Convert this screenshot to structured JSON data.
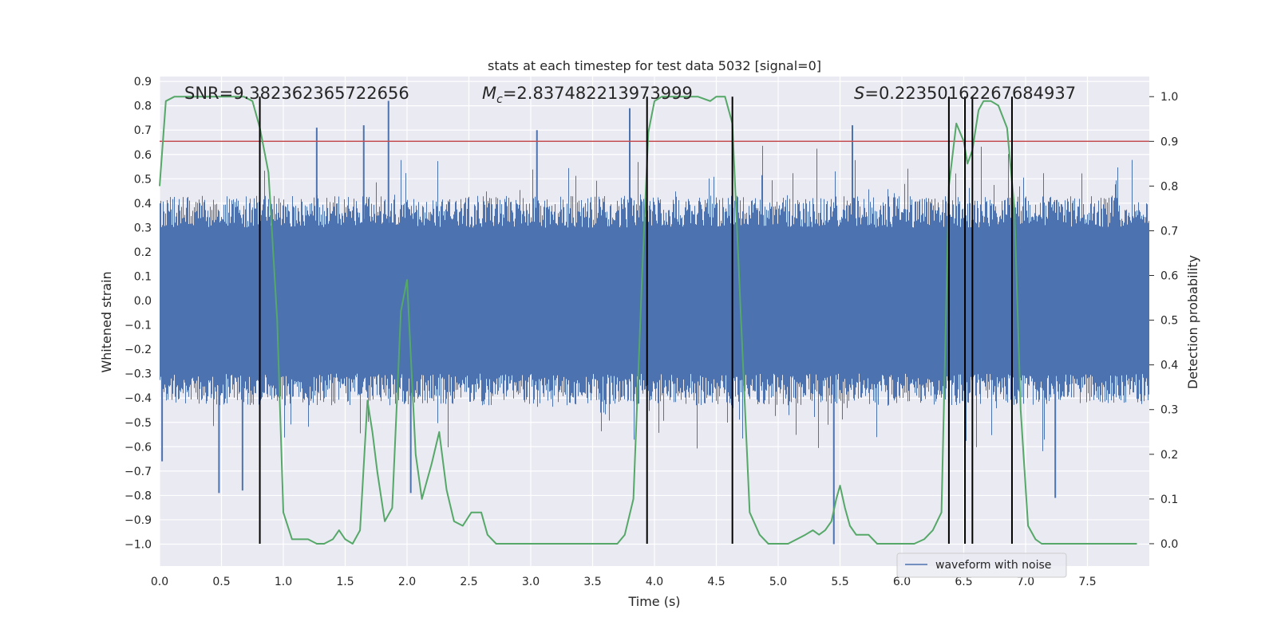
{
  "chart_data": {
    "type": "line",
    "title": "stats at each timestep for test data 5032 [signal=0]",
    "xlabel": "Time (s)",
    "ylabel_left": "Whitened strain",
    "ylabel_right": "Detection probability",
    "xlim": [
      0,
      8
    ],
    "ylim_left": [
      -1.09,
      0.92
    ],
    "ylim_right": [
      -0.05,
      1.045
    ],
    "x_ticks": [
      0.0,
      0.5,
      1.0,
      1.5,
      2.0,
      2.5,
      3.0,
      3.5,
      4.0,
      4.5,
      5.0,
      5.5,
      6.0,
      6.5,
      7.0,
      7.5
    ],
    "x_tick_labels": [
      "0.0",
      "0.5",
      "1.0",
      "1.5",
      "2.0",
      "2.5",
      "3.0",
      "3.5",
      "4.0",
      "4.5",
      "5.0",
      "5.5",
      "6.0",
      "6.5",
      "7.0",
      "7.5"
    ],
    "y_left_ticks": [
      0.9,
      0.8,
      0.7,
      0.6,
      0.5,
      0.4,
      0.3,
      0.2,
      0.1,
      0.0,
      -0.1,
      -0.2,
      -0.3,
      -0.4,
      -0.5,
      -0.6,
      -0.7,
      -0.8,
      -0.9,
      -1.0
    ],
    "y_left_tick_labels": [
      "0.9",
      "0.8",
      "0.7",
      "0.6",
      "0.5",
      "0.4",
      "0.3",
      "0.2",
      "0.1",
      "0.0",
      "−0.1",
      "−0.2",
      "−0.3",
      "−0.4",
      "−0.5",
      "−0.6",
      "−0.7",
      "−0.8",
      "−0.9",
      "−1.0"
    ],
    "y_right_ticks": [
      1.0,
      0.9,
      0.8,
      0.7,
      0.6,
      0.5,
      0.4,
      0.3,
      0.2,
      0.1,
      0.0
    ],
    "y_right_tick_labels": [
      "1.0",
      "0.9",
      "0.8",
      "0.7",
      "0.6",
      "0.5",
      "0.4",
      "0.3",
      "0.2",
      "0.1",
      "0.0"
    ],
    "annotations": {
      "snr": "SNR=9.382362365722656",
      "mc_symbol": "M",
      "mc_sub": "c",
      "mc_value": "=2.837482213973999",
      "s_symbol": "S",
      "s_value": "=0.22350162267684937"
    },
    "legend": {
      "label": "waveform with noise",
      "position": "lower-right"
    },
    "threshold": {
      "value": 0.9,
      "axis": "right",
      "color": "#c44e52"
    },
    "vertical_lines": [
      0.81,
      3.94,
      4.63,
      6.38,
      6.51,
      6.57,
      6.89
    ],
    "series": [
      {
        "name": "waveform with noise",
        "axis": "left",
        "color": "#4c72b0",
        "style": "dense noise, envelope approx ±0.45 with spikes",
        "notable_peaks": [
          {
            "x": 1.85,
            "y": 0.82
          },
          {
            "x": 3.8,
            "y": 0.79
          },
          {
            "x": 1.27,
            "y": 0.71
          },
          {
            "x": 1.65,
            "y": 0.72
          },
          {
            "x": 5.6,
            "y": 0.72
          },
          {
            "x": 3.05,
            "y": 0.7
          }
        ],
        "notable_troughs": [
          {
            "x": 5.45,
            "y": -1.0
          },
          {
            "x": 0.48,
            "y": -0.79
          },
          {
            "x": 0.67,
            "y": -0.78
          },
          {
            "x": 7.24,
            "y": -0.81
          },
          {
            "x": 2.03,
            "y": -0.79
          },
          {
            "x": 0.02,
            "y": -0.66
          }
        ]
      },
      {
        "name": "detection probability",
        "axis": "right",
        "color": "#55a868",
        "x": [
          0.0,
          0.05,
          0.12,
          0.2,
          0.3,
          0.4,
          0.5,
          0.6,
          0.68,
          0.75,
          0.81,
          0.88,
          0.95,
          1.0,
          1.07,
          1.15,
          1.2,
          1.27,
          1.33,
          1.4,
          1.45,
          1.5,
          1.56,
          1.62,
          1.68,
          1.72,
          1.76,
          1.82,
          1.88,
          1.95,
          2.0,
          2.07,
          2.12,
          2.2,
          2.26,
          2.32,
          2.38,
          2.45,
          2.52,
          2.6,
          2.65,
          2.72,
          2.8,
          2.9,
          3.0,
          3.1,
          3.2,
          3.3,
          3.4,
          3.5,
          3.6,
          3.7,
          3.76,
          3.83,
          3.9,
          3.95,
          4.0,
          4.06,
          4.15,
          4.25,
          4.35,
          4.45,
          4.5,
          4.57,
          4.63,
          4.7,
          4.77,
          4.85,
          4.92,
          5.0,
          5.08,
          5.15,
          5.22,
          5.28,
          5.33,
          5.38,
          5.43,
          5.47,
          5.5,
          5.54,
          5.58,
          5.63,
          5.68,
          5.73,
          5.8,
          5.9,
          6.0,
          6.1,
          6.18,
          6.25,
          6.32,
          6.38,
          6.44,
          6.5,
          6.53,
          6.57,
          6.62,
          6.66,
          6.72,
          6.78,
          6.85,
          6.91,
          6.96,
          7.02,
          7.08,
          7.13,
          7.2,
          7.3,
          7.5,
          7.7,
          7.9
        ],
        "values": [
          0.8,
          0.99,
          1.0,
          1.0,
          1.0,
          1.0,
          1.0,
          1.0,
          1.0,
          0.99,
          0.93,
          0.83,
          0.5,
          0.07,
          0.01,
          0.01,
          0.01,
          0.0,
          0.0,
          0.01,
          0.03,
          0.01,
          0.0,
          0.03,
          0.32,
          0.25,
          0.16,
          0.05,
          0.08,
          0.52,
          0.59,
          0.2,
          0.1,
          0.18,
          0.25,
          0.12,
          0.05,
          0.04,
          0.07,
          0.07,
          0.02,
          0.0,
          0.0,
          0.0,
          0.0,
          0.0,
          0.0,
          0.0,
          0.0,
          0.0,
          0.0,
          0.0,
          0.02,
          0.1,
          0.6,
          0.92,
          0.99,
          1.0,
          1.0,
          1.0,
          1.0,
          0.99,
          1.0,
          1.0,
          0.94,
          0.5,
          0.07,
          0.02,
          0.0,
          0.0,
          0.0,
          0.01,
          0.02,
          0.03,
          0.02,
          0.03,
          0.05,
          0.1,
          0.13,
          0.08,
          0.04,
          0.02,
          0.02,
          0.02,
          0.0,
          0.0,
          0.0,
          0.0,
          0.01,
          0.03,
          0.07,
          0.8,
          0.94,
          0.9,
          0.85,
          0.88,
          0.97,
          0.99,
          0.99,
          0.98,
          0.93,
          0.75,
          0.3,
          0.04,
          0.01,
          0.0,
          0.0,
          0.0,
          0.0,
          0.0,
          0.0
        ]
      }
    ]
  }
}
